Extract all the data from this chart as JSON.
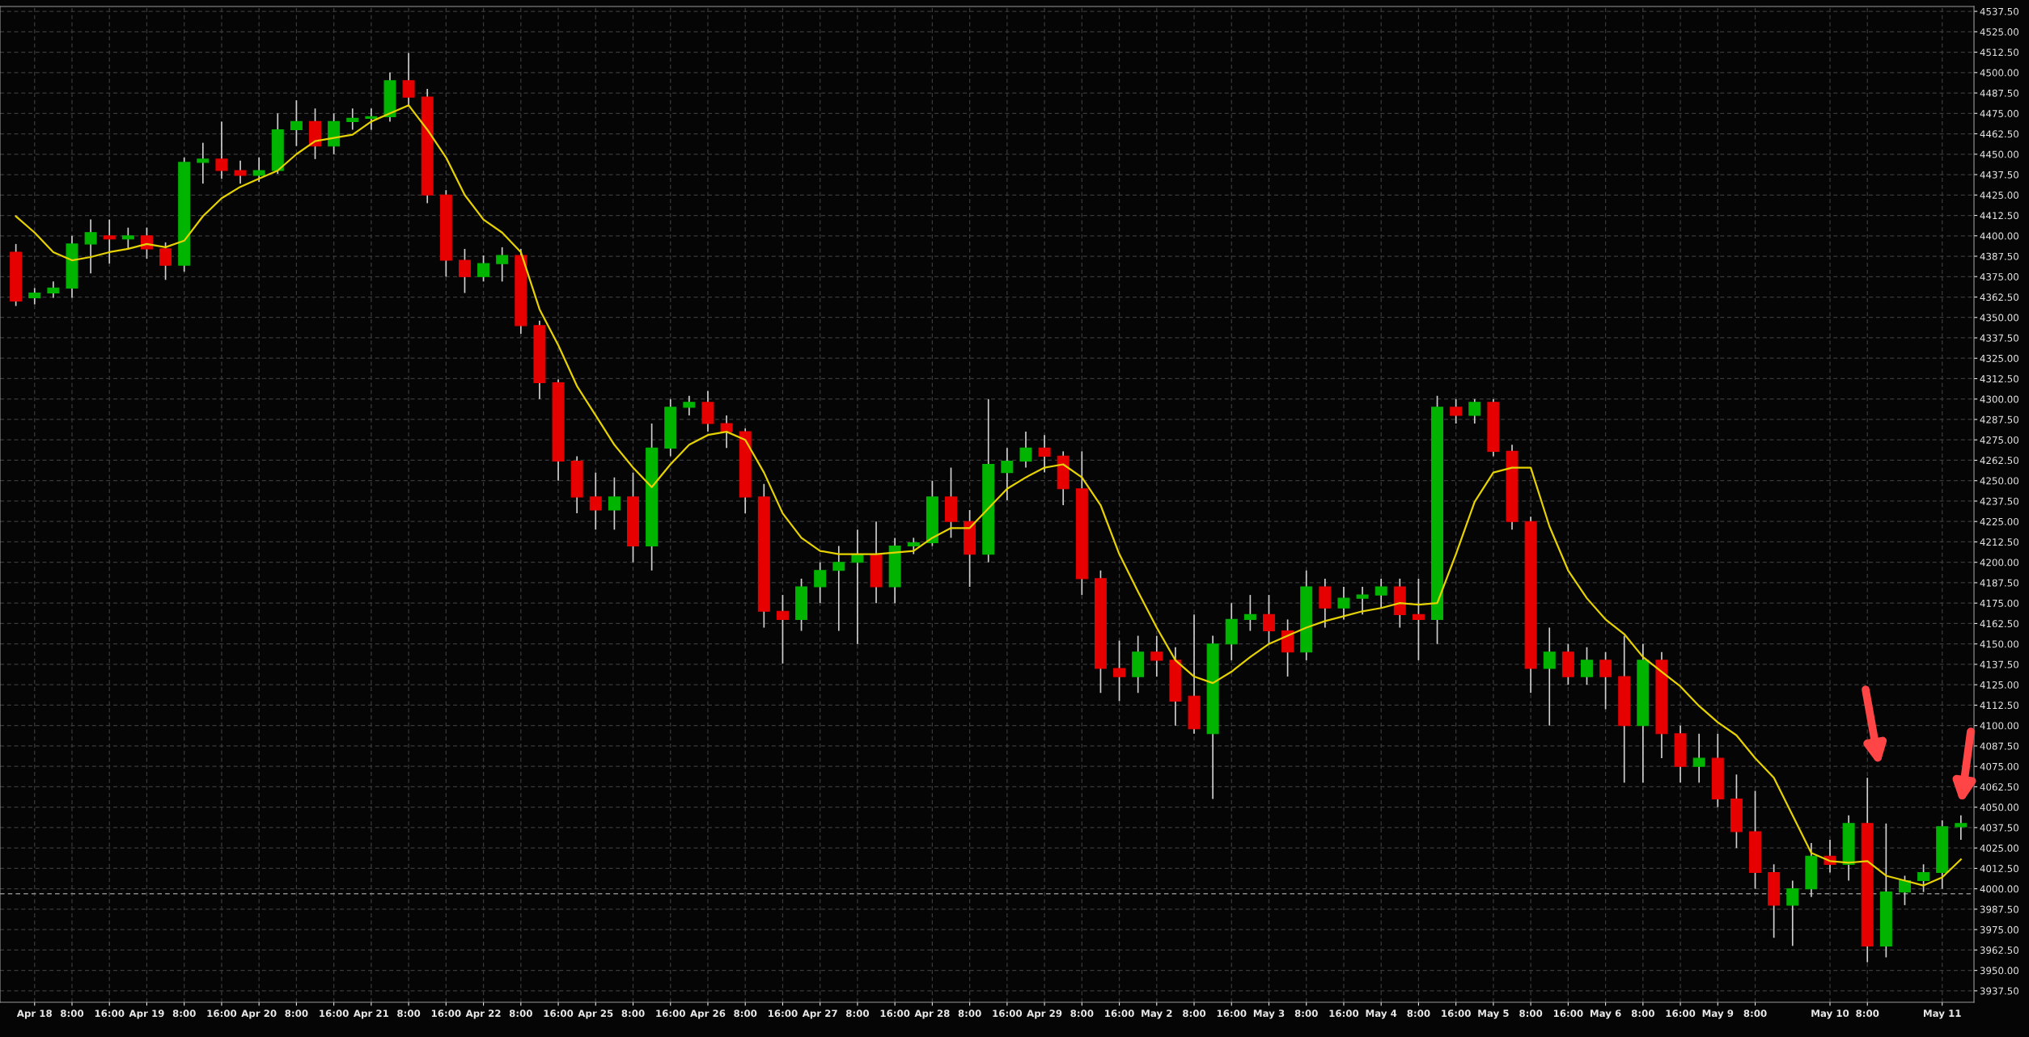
{
  "chart_data": {
    "type": "candlestick",
    "categories": [
      null,
      "Apr 18",
      null,
      "8:00",
      null,
      "16:00",
      null,
      "Apr 19",
      null,
      "8:00",
      null,
      "16:00",
      null,
      "Apr 20",
      null,
      "8:00",
      null,
      "16:00",
      null,
      "Apr 21",
      null,
      "8:00",
      null,
      "16:00",
      null,
      "Apr 22",
      null,
      "8:00",
      null,
      "16:00",
      null,
      "Apr 25",
      null,
      "8:00",
      null,
      "16:00",
      null,
      "Apr 26",
      null,
      "8:00",
      null,
      "16:00",
      null,
      "Apr 27",
      null,
      "8:00",
      null,
      "16:00",
      null,
      "Apr 28",
      null,
      "8:00",
      null,
      "16:00",
      null,
      "Apr 29",
      null,
      "8:00",
      null,
      "16:00",
      null,
      "May 2",
      null,
      "8:00",
      null,
      "16:00",
      null,
      "May 3",
      null,
      "8:00",
      null,
      "16:00",
      null,
      "May 4",
      null,
      "8:00",
      null,
      "16:00",
      null,
      "May 5",
      null,
      "8:00",
      null,
      "16:00",
      null,
      "May 6",
      null,
      "8:00",
      null,
      "16:00",
      null,
      "May 9",
      null,
      "8:00",
      null,
      null,
      null,
      "May 10",
      null,
      "8:00",
      null,
      null,
      null,
      "May 11",
      null
    ],
    "ohlc": [
      [
        4390,
        4395,
        4357,
        4360
      ],
      [
        4362,
        4368,
        4358,
        4365
      ],
      [
        4365,
        4372,
        4362,
        4368
      ],
      [
        4368,
        4400,
        4362,
        4395
      ],
      [
        4395,
        4410,
        4377,
        4402
      ],
      [
        4400,
        4410,
        4383,
        4398
      ],
      [
        4398,
        4405,
        4392,
        4400
      ],
      [
        4400,
        4405,
        4386,
        4392
      ],
      [
        4392,
        4396,
        4373,
        4382
      ],
      [
        4382,
        4448,
        4378,
        4445
      ],
      [
        4445,
        4457,
        4432,
        4447
      ],
      [
        4447,
        4470,
        4435,
        4440
      ],
      [
        4440,
        4446,
        4432,
        4437
      ],
      [
        4437,
        4448,
        4433,
        4440
      ],
      [
        4440,
        4475,
        4438,
        4465
      ],
      [
        4465,
        4483,
        4455,
        4470
      ],
      [
        4470,
        4478,
        4447,
        4455
      ],
      [
        4455,
        4475,
        4450,
        4470
      ],
      [
        4470,
        4478,
        4465,
        4472
      ],
      [
        4472,
        4478,
        4465,
        4473
      ],
      [
        4473,
        4500,
        4470,
        4495
      ],
      [
        4495,
        4512,
        4480,
        4485
      ],
      [
        4485,
        4490,
        4420,
        4425
      ],
      [
        4425,
        4428,
        4375,
        4385
      ],
      [
        4385,
        4392,
        4365,
        4375
      ],
      [
        4375,
        4388,
        4372,
        4383
      ],
      [
        4383,
        4393,
        4372,
        4388
      ],
      [
        4388,
        4392,
        4340,
        4345
      ],
      [
        4345,
        4348,
        4300,
        4310
      ],
      [
        4310,
        4312,
        4250,
        4262
      ],
      [
        4262,
        4265,
        4230,
        4240
      ],
      [
        4240,
        4255,
        4220,
        4232
      ],
      [
        4232,
        4252,
        4220,
        4240
      ],
      [
        4240,
        4255,
        4200,
        4210
      ],
      [
        4210,
        4285,
        4195,
        4270
      ],
      [
        4270,
        4300,
        4265,
        4295
      ],
      [
        4295,
        4302,
        4290,
        4298
      ],
      [
        4298,
        4305,
        4280,
        4285
      ],
      [
        4285,
        4290,
        4270,
        4280
      ],
      [
        4280,
        4282,
        4230,
        4240
      ],
      [
        4240,
        4248,
        4160,
        4170
      ],
      [
        4170,
        4180,
        4138,
        4165
      ],
      [
        4165,
        4190,
        4158,
        4185
      ],
      [
        4185,
        4200,
        4175,
        4195
      ],
      [
        4195,
        4210,
        4158,
        4200
      ],
      [
        4200,
        4220,
        4150,
        4205
      ],
      [
        4205,
        4225,
        4175,
        4185
      ],
      [
        4185,
        4215,
        4175,
        4210
      ],
      [
        4210,
        4215,
        4205,
        4212
      ],
      [
        4212,
        4250,
        4210,
        4240
      ],
      [
        4240,
        4258,
        4215,
        4225
      ],
      [
        4225,
        4232,
        4185,
        4205
      ],
      [
        4205,
        4300,
        4200,
        4260
      ],
      [
        4255,
        4270,
        4238,
        4262
      ],
      [
        4262,
        4280,
        4258,
        4270
      ],
      [
        4270,
        4278,
        4255,
        4265
      ],
      [
        4265,
        4268,
        4235,
        4245
      ],
      [
        4245,
        4268,
        4180,
        4190
      ],
      [
        4190,
        4195,
        4120,
        4135
      ],
      [
        4135,
        4152,
        4115,
        4130
      ],
      [
        4130,
        4155,
        4120,
        4145
      ],
      [
        4145,
        4155,
        4130,
        4140
      ],
      [
        4140,
        4148,
        4100,
        4115
      ],
      [
        4118,
        4168,
        4095,
        4098
      ],
      [
        4095,
        4155,
        4055,
        4150
      ],
      [
        4150,
        4175,
        4140,
        4165
      ],
      [
        4165,
        4180,
        4158,
        4168
      ],
      [
        4168,
        4180,
        4150,
        4158
      ],
      [
        4158,
        4165,
        4130,
        4145
      ],
      [
        4145,
        4195,
        4140,
        4185
      ],
      [
        4185,
        4190,
        4160,
        4172
      ],
      [
        4172,
        4185,
        4165,
        4178
      ],
      [
        4178,
        4185,
        4168,
        4180
      ],
      [
        4180,
        4190,
        4172,
        4185
      ],
      [
        4185,
        4190,
        4160,
        4168
      ],
      [
        4168,
        4190,
        4140,
        4165
      ],
      [
        4165,
        4302,
        4150,
        4295
      ],
      [
        4295,
        4300,
        4285,
        4290
      ],
      [
        4290,
        4300,
        4285,
        4298
      ],
      [
        4298,
        4300,
        4265,
        4268
      ],
      [
        4268,
        4272,
        4220,
        4225
      ],
      [
        4225,
        4228,
        4120,
        4135
      ],
      [
        4135,
        4160,
        4100,
        4145
      ],
      [
        4145,
        4150,
        4125,
        4130
      ],
      [
        4130,
        4148,
        4125,
        4140
      ],
      [
        4140,
        4145,
        4110,
        4130
      ],
      [
        4130,
        4155,
        4065,
        4100
      ],
      [
        4100,
        4150,
        4065,
        4140
      ],
      [
        4140,
        4145,
        4080,
        4095
      ],
      [
        4095,
        4100,
        4065,
        4075
      ],
      [
        4075,
        4095,
        4065,
        4080
      ],
      [
        4080,
        4095,
        4050,
        4055
      ],
      [
        4055,
        4070,
        4025,
        4035
      ],
      [
        4035,
        4060,
        4000,
        4010
      ],
      [
        4010,
        4015,
        3970,
        3990
      ],
      [
        3990,
        4005,
        3965,
        4000
      ],
      [
        4000,
        4028,
        3995,
        4020
      ],
      [
        4020,
        4030,
        4010,
        4015
      ],
      [
        4015,
        4045,
        4005,
        4040
      ],
      [
        4040,
        4068,
        3955,
        3965
      ],
      [
        3965,
        4040,
        3958,
        3998
      ],
      [
        3998,
        4008,
        3990,
        4005
      ],
      [
        4005,
        4015,
        3998,
        4010
      ],
      [
        4010,
        4042,
        4000,
        4038
      ],
      [
        4038,
        4045,
        4030,
        4040
      ]
    ],
    "colors": [
      "#e60000",
      "#00b400",
      "#00b400",
      "#00b400",
      "#00b400",
      "#e60000",
      "#00b400",
      "#e60000",
      "#e60000",
      "#00b400",
      "#00b400",
      "#e60000",
      "#e60000",
      "#00b400",
      "#00b400",
      "#00b400",
      "#e60000",
      "#00b400",
      "#00b400",
      "#00b400",
      "#00b400",
      "#e60000",
      "#e60000",
      "#e60000",
      "#e60000",
      "#00b400",
      "#00b400",
      "#e60000",
      "#e60000",
      "#e60000",
      "#e60000",
      "#e60000",
      "#00b400",
      "#e60000",
      "#00b400",
      "#00b400",
      "#00b400",
      "#e60000",
      "#e60000",
      "#e60000",
      "#e60000",
      "#e60000",
      "#00b400",
      "#00b400",
      "#00b400",
      "#00b400",
      "#e60000",
      "#00b400",
      "#00b400",
      "#00b400",
      "#e60000",
      "#e60000",
      "#00b400",
      "#00b400",
      "#00b400",
      "#e60000",
      "#e60000",
      "#e60000",
      "#e60000",
      "#e60000",
      "#00b400",
      "#e60000",
      "#e60000",
      "#e60000",
      "#00b400",
      "#00b400",
      "#00b400",
      "#e60000",
      "#e60000",
      "#00b400",
      "#e60000",
      "#00b400",
      "#00b400",
      "#00b400",
      "#e60000",
      "#e60000",
      "#00b400",
      "#e60000",
      "#00b400",
      "#e60000",
      "#e60000",
      "#e60000",
      "#00b400",
      "#e60000",
      "#00b400",
      "#e60000",
      "#e60000",
      "#00b400",
      "#e60000",
      "#e60000",
      "#00b400",
      "#e60000",
      "#e60000",
      "#e60000",
      "#e60000",
      "#00b400",
      "#00b400",
      "#e60000",
      "#00b400",
      "#e60000",
      "#00b400",
      "#00b400",
      "#00b400",
      "#00b400",
      "#00b400"
    ],
    "series": [
      {
        "type": "line",
        "color": "#e6d200",
        "values": [
          4412,
          4402,
          4390,
          4385,
          4387,
          4390,
          4392,
          4395,
          4393,
          4397,
          4412,
          4423,
          4430,
          4435,
          4440,
          4450,
          4458,
          4460,
          4462,
          4470,
          4475,
          4480,
          4465,
          4448,
          4425,
          4410,
          4402,
          4390,
          4355,
          4333,
          4308,
          4290,
          4272,
          4258,
          4246,
          4260,
          4272,
          4278,
          4280,
          4275,
          4255,
          4230,
          4215,
          4207,
          4205,
          4205,
          4205,
          4206,
          4207,
          4215,
          4221,
          4221,
          4233,
          4245,
          4252,
          4258,
          4260,
          4252,
          4235,
          4205,
          4182,
          4160,
          4140,
          4130,
          4126,
          4133,
          4142,
          4150,
          4155,
          4160,
          4164,
          4167,
          4170,
          4172,
          4175,
          4174,
          4175,
          4205,
          4237,
          4255,
          4258,
          4258,
          4222,
          4195,
          4178,
          4165,
          4156,
          4142,
          4133,
          4124,
          4112,
          4102,
          4094,
          4080,
          4068,
          4045,
          4022,
          4017,
          4016,
          4017,
          4008,
          4005,
          4002,
          4007,
          4018
        ]
      }
    ],
    "ylim": [
      3930.5,
      4540.5
    ],
    "yticks": [
      {
        "value": 3937.5,
        "label": "3937.50"
      },
      {
        "value": 3950,
        "label": "3950.00"
      },
      {
        "value": 3962.5,
        "label": "3962.50"
      },
      {
        "value": 3975,
        "label": "3975.00"
      },
      {
        "value": 3987.5,
        "label": "3987.50"
      },
      {
        "value": 4000,
        "label": "4000.00"
      },
      {
        "value": 4012.5,
        "label": "4012.50"
      },
      {
        "value": 4025,
        "label": "4025.00"
      },
      {
        "value": 4037.5,
        "label": "4037.50"
      },
      {
        "value": 4050,
        "label": "4050.00"
      },
      {
        "value": 4062.5,
        "label": "4062.50"
      },
      {
        "value": 4075,
        "label": "4075.00"
      },
      {
        "value": 4087.5,
        "label": "4087.50"
      },
      {
        "value": 4100,
        "label": "4100.00"
      },
      {
        "value": 4112.5,
        "label": "4112.50"
      },
      {
        "value": 4125,
        "label": "4125.00"
      },
      {
        "value": 4137.5,
        "label": "4137.50"
      },
      {
        "value": 4150,
        "label": "4150.00"
      },
      {
        "value": 4162.5,
        "label": "4162.50"
      },
      {
        "value": 4175,
        "label": "4175.00"
      },
      {
        "value": 4187.5,
        "label": "4187.50"
      },
      {
        "value": 4200,
        "label": "4200.00"
      },
      {
        "value": 4212.5,
        "label": "4212.50"
      },
      {
        "value": 4225,
        "label": "4225.00"
      },
      {
        "value": 4237.5,
        "label": "4237.50"
      },
      {
        "value": 4250,
        "label": "4250.00"
      },
      {
        "value": 4262.5,
        "label": "4262.50"
      },
      {
        "value": 4275,
        "label": "4275.00"
      },
      {
        "value": 4287.5,
        "label": "4287.50"
      },
      {
        "value": 4300,
        "label": "4300.00"
      },
      {
        "value": 4312.5,
        "label": "4312.50"
      },
      {
        "value": 4325,
        "label": "4325.00"
      },
      {
        "value": 4337.5,
        "label": "4337.50"
      },
      {
        "value": 4350,
        "label": "4350.00"
      },
      {
        "value": 4362.5,
        "label": "4362.50"
      },
      {
        "value": 4375,
        "label": "4375.00"
      },
      {
        "value": 4387.5,
        "label": "4387.50"
      },
      {
        "value": 4400,
        "label": "4400.00"
      },
      {
        "value": 4412.5,
        "label": "4412.50"
      },
      {
        "value": 4425,
        "label": "4425.00"
      },
      {
        "value": 4437.5,
        "label": "4437.50"
      },
      {
        "value": 4450,
        "label": "4450.00"
      },
      {
        "value": 4462.5,
        "label": "4462.50"
      },
      {
        "value": 4475,
        "label": "4475.00"
      },
      {
        "value": 4487.5,
        "label": "4487.50"
      },
      {
        "value": 4500,
        "label": "4500.00"
      },
      {
        "value": 4512.5,
        "label": "4512.50"
      },
      {
        "value": 4525,
        "label": "4525.00"
      },
      {
        "value": 4537.5,
        "label": "4537.50"
      }
    ],
    "grid": true,
    "ref_lines": [
      {
        "axis": "y",
        "value": 3997,
        "color": "#8a8a8a",
        "line_style": "dashed"
      }
    ]
  }
}
